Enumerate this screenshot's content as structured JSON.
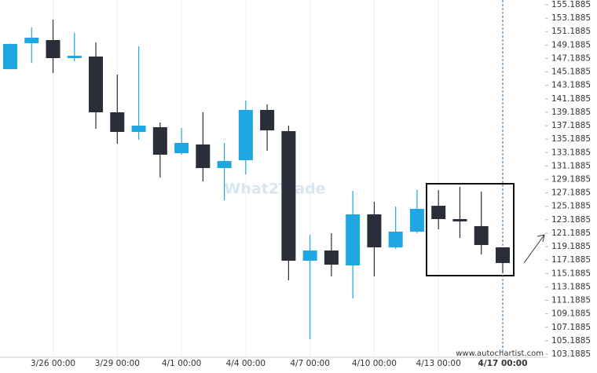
{
  "chart_data": {
    "type": "candlestick",
    "categories": [
      null,
      null,
      "3/26 00:00",
      null,
      null,
      "3/29 00:00",
      null,
      null,
      "4/1 00:00",
      null,
      null,
      "4/4 00:00",
      null,
      null,
      "4/7 00:00",
      null,
      null,
      "4/10 00:00",
      null,
      null,
      "4/13 00:00",
      null,
      null,
      "4/17 00:00"
    ],
    "open": [
      145.6,
      149.46,
      149.93,
      147.24,
      147.48,
      139.18,
      136.26,
      136.96,
      133.1,
      134.39,
      130.88,
      132.05,
      139.53,
      136.38,
      117.09,
      118.61,
      116.39,
      123.99,
      119.08,
      121.42,
      125.27,
      123.29,
      122.24,
      119.08
    ],
    "high": [
      149.4,
      151.8,
      152.97,
      150.98,
      149.58,
      144.79,
      149.0,
      137.66,
      136.84,
      139.18,
      134.62,
      140.93,
      140.35,
      137.19,
      120.95,
      121.19,
      127.5,
      125.86,
      125.16,
      127.61,
      127.61,
      128.08,
      127.38,
      119.08
    ],
    "low": [
      145.6,
      146.5,
      145.02,
      146.77,
      136.73,
      134.51,
      135.09,
      129.48,
      132.87,
      128.9,
      126.09,
      129.95,
      133.45,
      114.17,
      105.41,
      114.76,
      111.49,
      114.76,
      118.85,
      121.19,
      121.77,
      120.48,
      118.03,
      115.23
    ],
    "close": [
      149.35,
      150.28,
      147.24,
      147.59,
      139.18,
      136.26,
      137.19,
      132.87,
      134.62,
      130.88,
      131.93,
      139.53,
      136.49,
      117.09,
      118.61,
      116.51,
      123.99,
      119.08,
      121.42,
      124.81,
      123.29,
      122.94,
      119.43,
      116.75
    ],
    "up_color": "#1ea7e1",
    "down_color": "#2a2e39",
    "ylim": [
      102.72,
      155.89
    ],
    "yticks": [
      103.1885,
      105.1885,
      107.1885,
      109.1885,
      111.1885,
      113.1885,
      115.1885,
      117.1885,
      119.1885,
      121.1885,
      123.1885,
      125.1885,
      127.1885,
      129.1885,
      131.1885,
      133.1885,
      135.1885,
      137.1885,
      139.1885,
      141.1885,
      143.1885,
      145.1885,
      147.1885,
      149.1885,
      151.1885,
      153.1885,
      155.1885
    ],
    "grid": true,
    "watermark": "What2Trade",
    "source": "www.autochartist.com"
  }
}
